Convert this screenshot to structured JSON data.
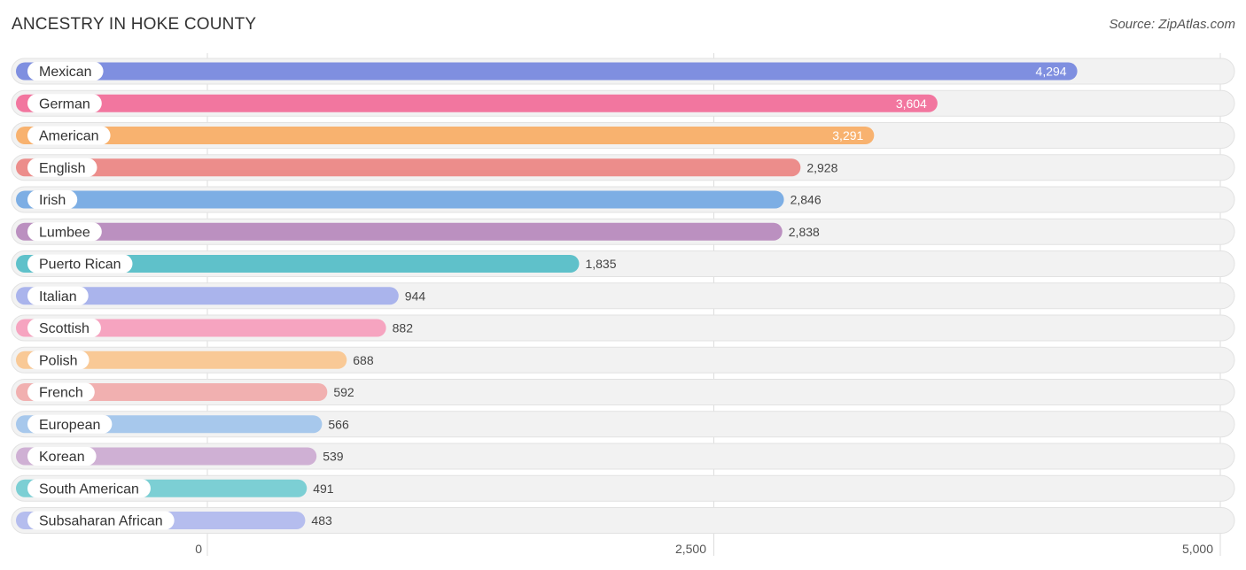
{
  "chart_data": {
    "type": "bar",
    "orientation": "horizontal",
    "title": "ANCESTRY IN HOKE COUNTY",
    "source": "Source: ZipAtlas.com",
    "xlim": [
      0,
      5000
    ],
    "ticks": [
      {
        "value": 0,
        "label": "0"
      },
      {
        "value": 2500,
        "label": "2,500"
      },
      {
        "value": 5000,
        "label": "5,000"
      }
    ],
    "bars": [
      {
        "label": "Mexican",
        "value": 4294,
        "display": "4,294",
        "color": "#7f8fe0",
        "value_inside": true
      },
      {
        "label": "German",
        "value": 3604,
        "display": "3,604",
        "color": "#f2769f",
        "value_inside": true
      },
      {
        "label": "American",
        "value": 3291,
        "display": "3,291",
        "color": "#f8b26f",
        "value_inside": true
      },
      {
        "label": "English",
        "value": 2928,
        "display": "2,928",
        "color": "#ec8d8b",
        "value_inside": false
      },
      {
        "label": "Irish",
        "value": 2846,
        "display": "2,846",
        "color": "#7daee4",
        "value_inside": false
      },
      {
        "label": "Lumbee",
        "value": 2838,
        "display": "2,838",
        "color": "#bb90c0",
        "value_inside": false
      },
      {
        "label": "Puerto Rican",
        "value": 1835,
        "display": "1,835",
        "color": "#5fc1ca",
        "value_inside": false
      },
      {
        "label": "Italian",
        "value": 944,
        "display": "944",
        "color": "#aab4ec",
        "value_inside": false
      },
      {
        "label": "Scottish",
        "value": 882,
        "display": "882",
        "color": "#f6a4c0",
        "value_inside": false
      },
      {
        "label": "Polish",
        "value": 688,
        "display": "688",
        "color": "#f9c996",
        "value_inside": false
      },
      {
        "label": "French",
        "value": 592,
        "display": "592",
        "color": "#f1b0b0",
        "value_inside": false
      },
      {
        "label": "European",
        "value": 566,
        "display": "566",
        "color": "#a7c8ec",
        "value_inside": false
      },
      {
        "label": "Korean",
        "value": 539,
        "display": "539",
        "color": "#cfb0d4",
        "value_inside": false
      },
      {
        "label": "South American",
        "value": 491,
        "display": "491",
        "color": "#7ccfd4",
        "value_inside": false
      },
      {
        "label": "Subsaharan African",
        "value": 483,
        "display": "483",
        "color": "#b5bdee",
        "value_inside": false
      }
    ]
  }
}
